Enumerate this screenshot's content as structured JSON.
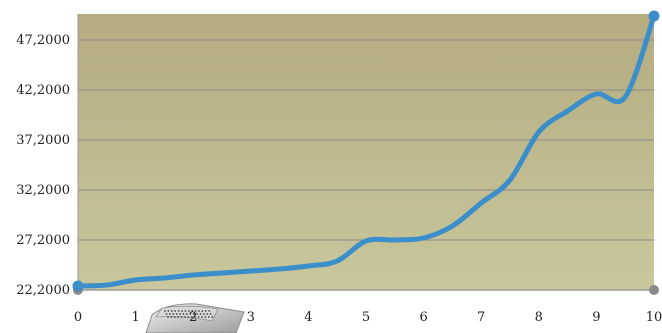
{
  "chart_data": {
    "type": "line",
    "title": "",
    "xlabel": "",
    "ylabel": "",
    "x_ticks": [
      "0",
      "1",
      "2",
      "3",
      "4",
      "5",
      "6",
      "7",
      "8",
      "9",
      "10"
    ],
    "y_ticks": [
      "22,2000",
      "27,2000",
      "32,2000",
      "37,2000",
      "42,2000",
      "47,2000"
    ],
    "y_tick_values": [
      22.2,
      27.2,
      32.2,
      37.2,
      42.2,
      47.2
    ],
    "xlim": [
      0,
      10
    ],
    "ylim": [
      22.2,
      49.8
    ],
    "grid": "horizontal",
    "legend": "none",
    "series": [
      {
        "x": [
          0,
          0.5,
          1,
          1.5,
          2,
          2.5,
          3,
          3.5,
          4,
          4.5,
          5,
          5.5,
          6,
          6.5,
          7,
          7.5,
          8,
          8.5,
          9,
          9.5,
          10
        ],
        "y": [
          22.6,
          22.7,
          23.2,
          23.4,
          23.7,
          23.9,
          24.1,
          24.3,
          24.6,
          25.1,
          27.1,
          27.2,
          27.4,
          28.6,
          30.9,
          33.2,
          38.0,
          40.1,
          41.8,
          41.5,
          49.6
        ]
      }
    ]
  },
  "colors": {
    "plot_background_top": "#b5ab80",
    "plot_background_bottom": "#c9c79d",
    "grid": "#8a8a8a",
    "axis": "#9a9a9a",
    "line": "#3a8ec9",
    "marker": "#3a8ec9",
    "axis_marker": "#8a8a8a"
  }
}
